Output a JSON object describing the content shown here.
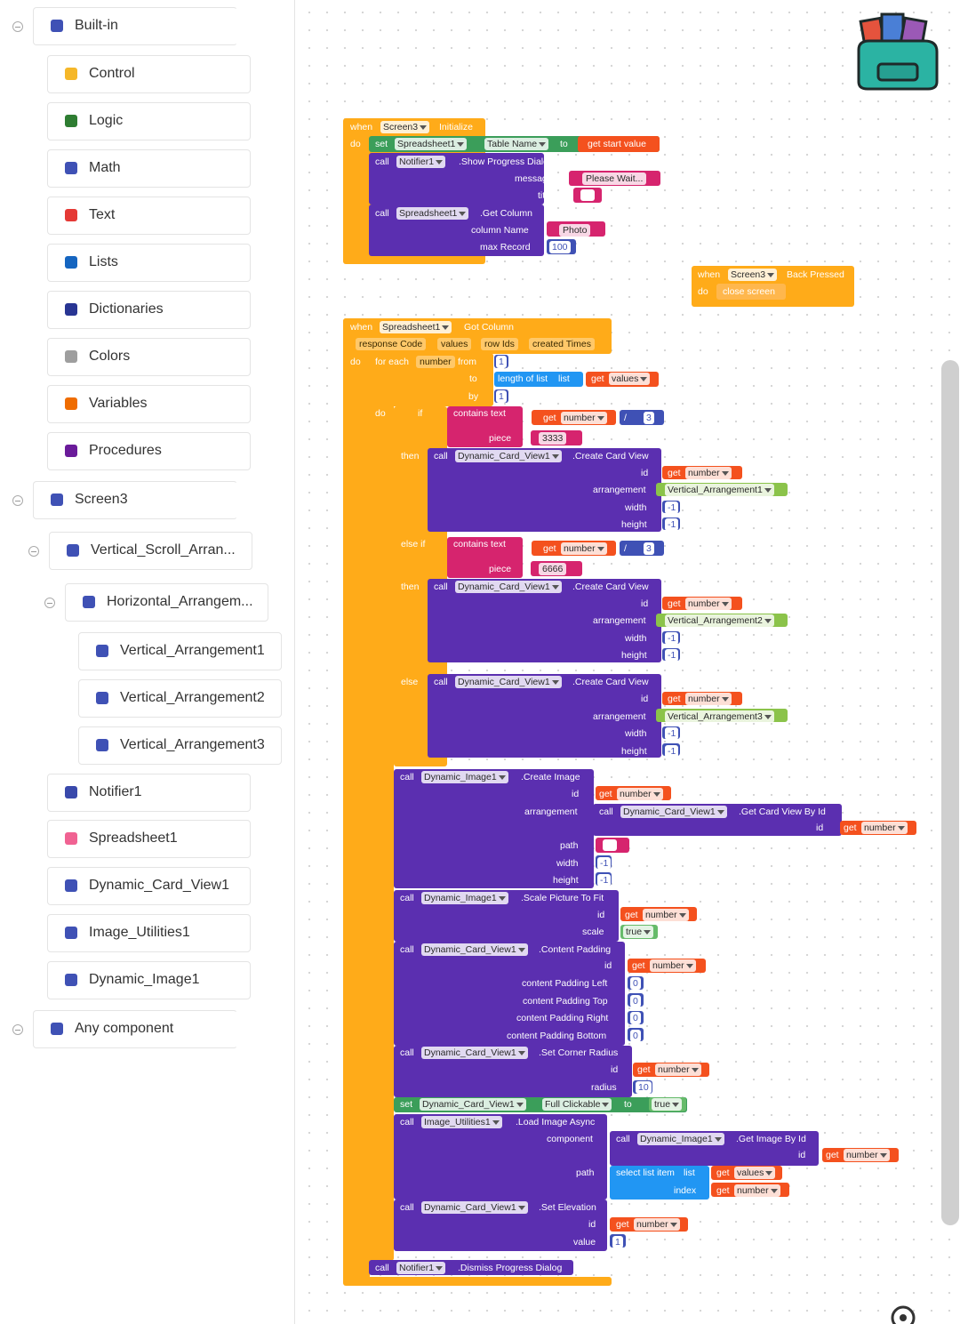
{
  "sidebar": {
    "items": [
      "Built-in",
      "Control",
      "Logic",
      "Math",
      "Text",
      "Lists",
      "Dictionaries",
      "Colors",
      "Variables",
      "Procedures",
      "Screen3",
      "Vertical_Scroll_Arran...",
      "Horizontal_Arrangem...",
      "Vertical_Arrangement1",
      "Vertical_Arrangement2",
      "Vertical_Arrangement3",
      "Notifier1",
      "Spreadsheet1",
      "Dynamic_Card_View1",
      "Image_Utilities1",
      "Dynamic_Image1",
      "Any component"
    ]
  },
  "workspace": {
    "rows": [
      [
        "when",
        "Screen3",
        "Initialize"
      ],
      [
        "do",
        "set",
        "Spreadsheet1",
        "Table Name",
        "to",
        "get start value"
      ],
      [
        "call",
        "Notifier1",
        ".Show Progress Dialog"
      ],
      [
        "message",
        "Please Wait..."
      ],
      [
        "title"
      ],
      [
        "call",
        "Spreadsheet1",
        ".Get Column"
      ],
      [
        "column Name",
        "Photo"
      ],
      [
        "max Record",
        "100"
      ],
      [
        "when",
        "Screen3",
        "Back Pressed"
      ],
      [
        "do",
        "close screen"
      ],
      [
        "when",
        "Spreadsheet1",
        "Got Column"
      ],
      [
        "response Code",
        "values",
        "row Ids",
        "created Times"
      ],
      [
        "do",
        "for each",
        "number",
        "from",
        "1"
      ],
      [
        "to",
        "length of list",
        "list",
        "get",
        "values"
      ],
      [
        "by",
        "1"
      ],
      [
        "do",
        "if",
        "contains text"
      ],
      [
        "get",
        "number",
        "/",
        "3"
      ],
      [
        "piece",
        "3333"
      ],
      [
        "then",
        "call",
        "Dynamic_Card_View1",
        ".Create Card View"
      ],
      [
        "id",
        "get",
        "number"
      ],
      [
        "arrangement",
        "Vertical_Arrangement1"
      ],
      [
        "width",
        "-1"
      ],
      [
        "height",
        "-1"
      ],
      [
        "else if",
        "contains text"
      ],
      [
        "get",
        "number",
        "/",
        "3"
      ],
      [
        "piece",
        "6666"
      ],
      [
        "then",
        "call",
        "Dynamic_Card_View1",
        ".Create Card View"
      ],
      [
        "id",
        "get",
        "number"
      ],
      [
        "arrangement",
        "Vertical_Arrangement2"
      ],
      [
        "width",
        "-1"
      ],
      [
        "height",
        "-1"
      ],
      [
        "else",
        "call",
        "Dynamic_Card_View1",
        ".Create Card View"
      ],
      [
        "id",
        "get",
        "number"
      ],
      [
        "arrangement",
        "Vertical_Arrangement3"
      ],
      [
        "width",
        "-1"
      ],
      [
        "height",
        "-1"
      ],
      [
        "call",
        "Dynamic_Image1",
        ".Create Image"
      ],
      [
        "id",
        "get",
        "number"
      ],
      [
        "arrangement",
        "call",
        "Dynamic_Card_View1",
        ".Get Card View By Id"
      ],
      [
        "id",
        "get",
        "number"
      ],
      [
        "path"
      ],
      [
        "width",
        "-1"
      ],
      [
        "height",
        "-1"
      ],
      [
        "call",
        "Dynamic_Image1",
        ".Scale Picture To Fit"
      ],
      [
        "id",
        "get",
        "number"
      ],
      [
        "scale",
        "true"
      ],
      [
        "call",
        "Dynamic_Card_View1",
        ".Content Padding"
      ],
      [
        "id",
        "get",
        "number"
      ],
      [
        "content Padding Left",
        "0"
      ],
      [
        "content Padding Top",
        "0"
      ],
      [
        "content Padding Right",
        "0"
      ],
      [
        "content Padding Bottom",
        "0"
      ],
      [
        "call",
        "Dynamic_Card_View1",
        ".Set Corner Radius"
      ],
      [
        "id",
        "get",
        "number"
      ],
      [
        "radius",
        "10"
      ],
      [
        "set",
        "Dynamic_Card_View1",
        "Full Clickable",
        "to",
        "true"
      ],
      [
        "call",
        "Image_Utilities1",
        ".Load Image Async"
      ],
      [
        "component",
        "call",
        "Dynamic_Image1",
        ".Get Image By Id"
      ],
      [
        "id",
        "get",
        "number"
      ],
      [
        "path",
        "select list item",
        "list",
        "get",
        "values"
      ],
      [
        "index",
        "get",
        "number"
      ],
      [
        "call",
        "Dynamic_Card_View1",
        ".Set Elevation"
      ],
      [
        "id",
        "get",
        "number"
      ],
      [
        "value",
        "1"
      ],
      [
        "call",
        "Notifier1",
        ".Dismiss Progress Dialog"
      ]
    ]
  }
}
